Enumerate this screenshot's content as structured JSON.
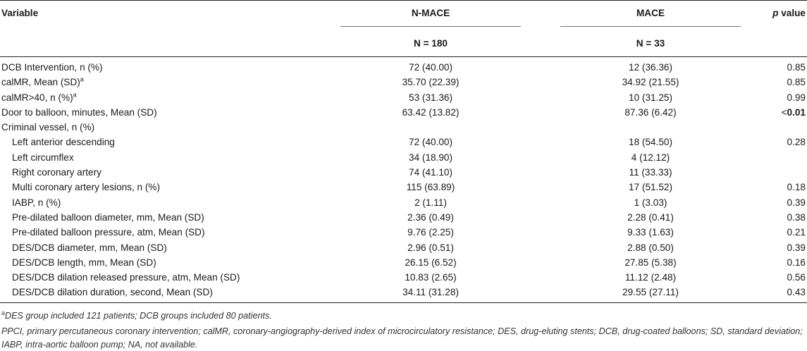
{
  "table": {
    "header": {
      "variable": "Variable",
      "group1": "N-MACE",
      "group1_n": "N = 180",
      "group2": "MACE",
      "group2_n": "N = 33",
      "pvalue_italic": "p",
      "pvalue_rest": " value"
    },
    "rows": [
      {
        "label": "DCB Intervention, n (%)",
        "sup": "",
        "nmace": "72 (40.00)",
        "mace": "12 (36.36)",
        "p_prefix": "",
        "p": "0.85",
        "p_bold": false,
        "indent": false
      },
      {
        "label": "calMR, Mean (SD)",
        "sup": "a",
        "nmace": "35.70 (22.39)",
        "mace": "34.92 (21.55)",
        "p_prefix": "",
        "p": "0.85",
        "p_bold": false,
        "indent": false
      },
      {
        "label": "calMR>40, n (%)",
        "sup": "a",
        "nmace": "53 (31.36)",
        "mace": "10 (31.25)",
        "p_prefix": "",
        "p": "0.99",
        "p_bold": false,
        "indent": false
      },
      {
        "label": "Door to balloon, minutes, Mean (SD)",
        "sup": "",
        "nmace": "63.42 (13.82)",
        "mace": "87.36 (6.42)",
        "p_prefix": "<",
        "p": "0.01",
        "p_bold": true,
        "indent": false
      },
      {
        "label": "Criminal vessel, n (%)",
        "sup": "",
        "nmace": "",
        "mace": "",
        "p_prefix": "",
        "p": "",
        "p_bold": false,
        "indent": false
      },
      {
        "label": "Left anterior descending",
        "sup": "",
        "nmace": "72 (40.00)",
        "mace": "18 (54.50)",
        "p_prefix": "",
        "p": "0.28",
        "p_bold": false,
        "indent": true
      },
      {
        "label": "Left circumflex",
        "sup": "",
        "nmace": "34 (18.90)",
        "mace": "4 (12.12)",
        "p_prefix": "",
        "p": "",
        "p_bold": false,
        "indent": true
      },
      {
        "label": "Right coronary artery",
        "sup": "",
        "nmace": "74 (41.10)",
        "mace": "11 (33.33)",
        "p_prefix": "",
        "p": "",
        "p_bold": false,
        "indent": true
      },
      {
        "label": "Multi coronary artery lesions, n (%)",
        "sup": "",
        "nmace": "115 (63.89)",
        "mace": "17 (51.52)",
        "p_prefix": "",
        "p": "0.18",
        "p_bold": false,
        "indent": true
      },
      {
        "label": "IABP, n (%)",
        "sup": "",
        "nmace": "2 (1.11)",
        "mace": "1 (3.03)",
        "p_prefix": "",
        "p": "0.39",
        "p_bold": false,
        "indent": true
      },
      {
        "label": "Pre-dilated balloon diameter, mm, Mean (SD)",
        "sup": "",
        "nmace": "2.36 (0.49)",
        "mace": "2.28 (0.41)",
        "p_prefix": "",
        "p": "0.38",
        "p_bold": false,
        "indent": true
      },
      {
        "label": "Pre-dilated balloon pressure, atm, Mean (SD)",
        "sup": "",
        "nmace": "9.76 (2.25)",
        "mace": "9.33 (1.63)",
        "p_prefix": "",
        "p": "0.21",
        "p_bold": false,
        "indent": true
      },
      {
        "label": "DES/DCB diameter, mm, Mean (SD)",
        "sup": "",
        "nmace": "2.96 (0.51)",
        "mace": "2.88 (0.50)",
        "p_prefix": "",
        "p": "0.39",
        "p_bold": false,
        "indent": true
      },
      {
        "label": "DES/DCB length, mm, Mean (SD)",
        "sup": "",
        "nmace": "26.15 (6.52)",
        "mace": "27.85 (5.38)",
        "p_prefix": "",
        "p": "0.16",
        "p_bold": false,
        "indent": true
      },
      {
        "label": "DES/DCB dilation released pressure, atm, Mean (SD)",
        "sup": "",
        "nmace": "10.83 (2.65)",
        "mace": "11.12 (2.48)",
        "p_prefix": "",
        "p": "0.56",
        "p_bold": false,
        "indent": true
      },
      {
        "label": "DES/DCB dilation duration, second, Mean (SD)",
        "sup": "",
        "nmace": "34.11 (31.28)",
        "mace": "29.55 (27.11)",
        "p_prefix": "",
        "p": "0.43",
        "p_bold": false,
        "indent": true
      }
    ]
  },
  "footnotes": {
    "note_a_marker": "a",
    "note_a_text": "DES group included 121 patients; DCB groups included 80 patients.",
    "abbreviations": "PPCI, primary percutaneous coronary intervention; calMR, coronary-angiography-derived index of microcirculatory resistance; DES, drug-eluting stents; DCB, drug-coated balloons; SD, standard deviation; IABP, intra-aortic balloon pump; NA, not available."
  }
}
